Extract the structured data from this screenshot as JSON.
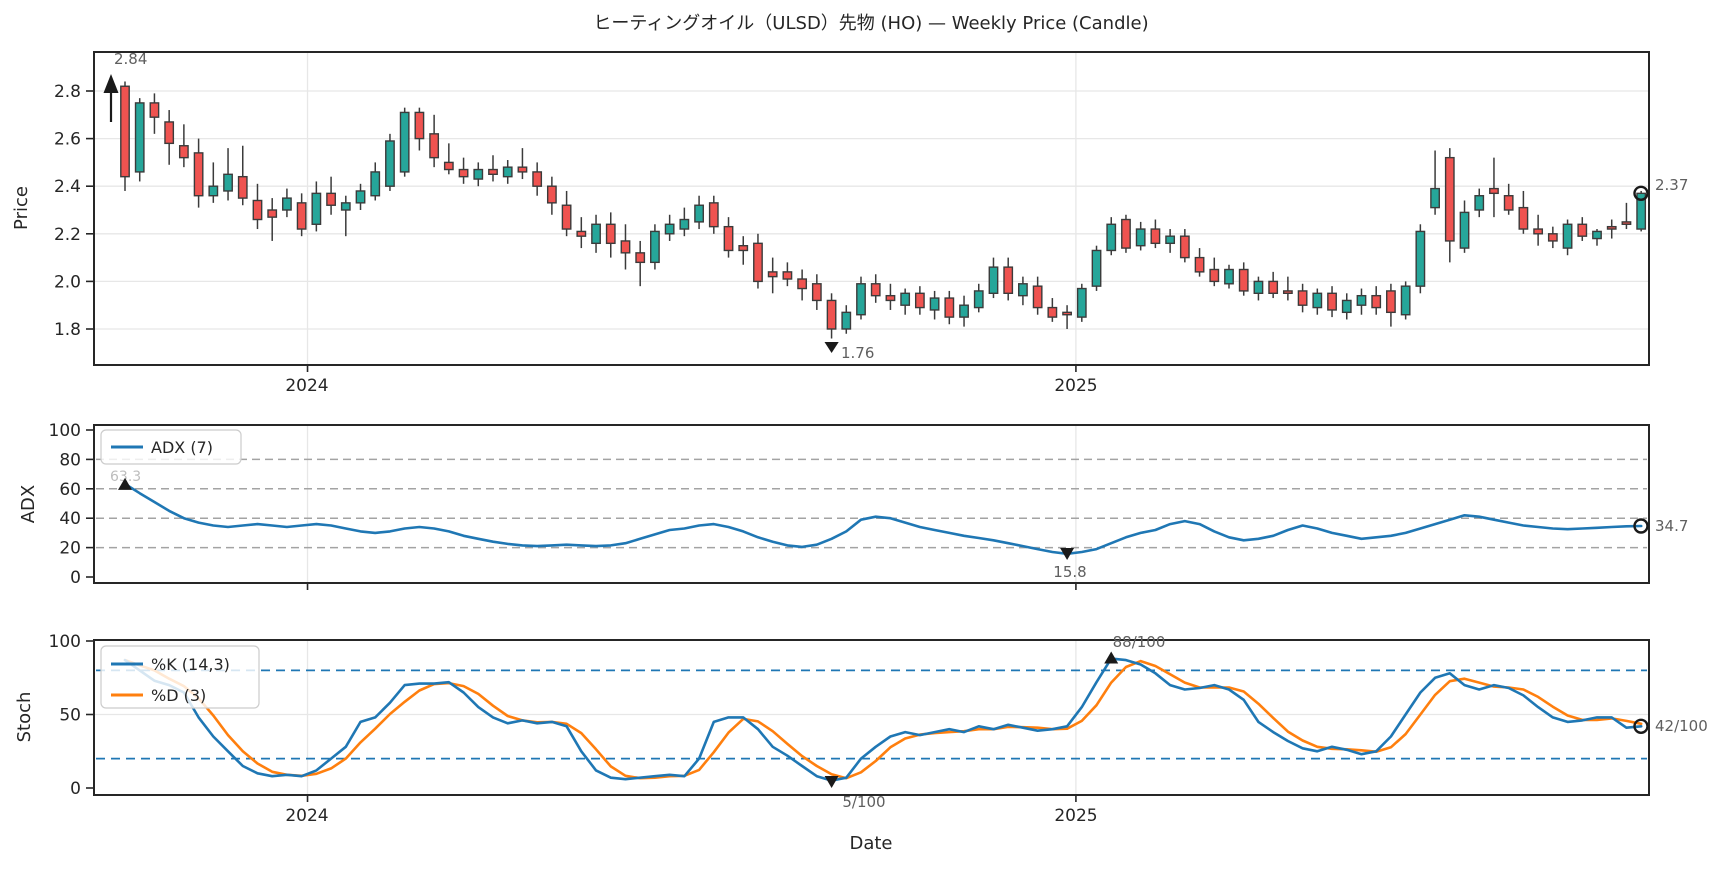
{
  "title": "ヒーティングオイル（ULSD）先物 (HO) — Weekly Price (Candle)",
  "colors": {
    "candle_up": "#26a69a",
    "candle_down": "#ef5350",
    "candle_edge": "#3b3b3b",
    "adx_line": "#1f77b4",
    "stoch_k_line": "#1f77b4",
    "stoch_d_line": "#ff7f0e",
    "grid": "#e7e7e7",
    "dashed_gray": "#a3a3a3",
    "dashed_blue": "#1f77b4",
    "marker": "#1a1a1a",
    "annotation_text": "#5f5f5f"
  },
  "xaxis": {
    "label": "Date",
    "ticks": [
      "2024",
      "2025"
    ]
  },
  "price_panel": {
    "ylabel": "Price",
    "yticks": [
      {
        "label": "1.8",
        "value": 1.8
      },
      {
        "label": "2.0",
        "value": 2.0
      },
      {
        "label": "2.2",
        "value": 2.2
      },
      {
        "label": "2.4",
        "value": 2.4
      },
      {
        "label": "2.6",
        "value": 2.6
      },
      {
        "label": "2.8",
        "value": 2.8
      }
    ],
    "annotations": {
      "start_high": "2.84",
      "min_low": "1.76",
      "last_close": "2.37"
    }
  },
  "adx_panel": {
    "ylabel": "ADX",
    "legend": "ADX (7)",
    "yticks": [
      {
        "label": "0",
        "value": 0
      },
      {
        "label": "20",
        "value": 20
      },
      {
        "label": "40",
        "value": 40
      },
      {
        "label": "60",
        "value": 60
      },
      {
        "label": "80",
        "value": 80
      },
      {
        "label": "100",
        "value": 100
      }
    ],
    "dashed_levels": [
      20,
      40,
      60,
      80
    ],
    "annotations": {
      "start": "63.3",
      "min": "15.8",
      "last": "34.7"
    }
  },
  "stoch_panel": {
    "ylabel": "Stoch",
    "legend_k": "%K (14,3)",
    "legend_d": "%D (3)",
    "yticks": [
      {
        "label": "0",
        "value": 0
      },
      {
        "label": "50",
        "value": 50
      },
      {
        "label": "100",
        "value": 100
      }
    ],
    "dashed_levels": [
      20,
      80
    ],
    "annotations": {
      "peak": "88/100",
      "min": "5/100",
      "last": "42/100"
    }
  },
  "chart_data": [
    {
      "type": "candlestick",
      "title": "ヒーティングオイル（ULSD）先物 (HO) — Weekly Price (Candle)",
      "xlabel": "Date",
      "ylabel": "Price",
      "timeframe": "weekly",
      "x_unit": "week_index",
      "ylim": [
        1.65,
        2.96
      ],
      "grid": true,
      "year_ticks": [
        {
          "label": "2024",
          "week": 12.4
        },
        {
          "label": "2025",
          "week": 64.6
        }
      ],
      "annotations": [
        {
          "week": 0,
          "text": "2.84",
          "kind": "high-arrow-up"
        },
        {
          "week": 48,
          "text": "1.76",
          "kind": "low-triangle-down"
        },
        {
          "week": 103,
          "text": "2.37",
          "kind": "last-close-circle"
        }
      ],
      "ohlc": [
        [
          2.82,
          2.84,
          2.38,
          2.44
        ],
        [
          2.46,
          2.77,
          2.42,
          2.75
        ],
        [
          2.75,
          2.79,
          2.62,
          2.69
        ],
        [
          2.67,
          2.72,
          2.49,
          2.58
        ],
        [
          2.57,
          2.66,
          2.48,
          2.52
        ],
        [
          2.54,
          2.6,
          2.31,
          2.36
        ],
        [
          2.36,
          2.5,
          2.33,
          2.4
        ],
        [
          2.38,
          2.56,
          2.34,
          2.45
        ],
        [
          2.44,
          2.57,
          2.32,
          2.35
        ],
        [
          2.34,
          2.41,
          2.22,
          2.26
        ],
        [
          2.3,
          2.35,
          2.17,
          2.27
        ],
        [
          2.3,
          2.39,
          2.27,
          2.35
        ],
        [
          2.33,
          2.37,
          2.19,
          2.22
        ],
        [
          2.24,
          2.42,
          2.21,
          2.37
        ],
        [
          2.37,
          2.44,
          2.28,
          2.32
        ],
        [
          2.3,
          2.36,
          2.19,
          2.33
        ],
        [
          2.33,
          2.41,
          2.3,
          2.38
        ],
        [
          2.36,
          2.5,
          2.34,
          2.46
        ],
        [
          2.4,
          2.62,
          2.38,
          2.59
        ],
        [
          2.46,
          2.73,
          2.44,
          2.71
        ],
        [
          2.71,
          2.73,
          2.55,
          2.6
        ],
        [
          2.62,
          2.7,
          2.48,
          2.52
        ],
        [
          2.5,
          2.58,
          2.45,
          2.47
        ],
        [
          2.47,
          2.52,
          2.41,
          2.44
        ],
        [
          2.43,
          2.5,
          2.4,
          2.47
        ],
        [
          2.47,
          2.53,
          2.42,
          2.45
        ],
        [
          2.44,
          2.51,
          2.41,
          2.48
        ],
        [
          2.48,
          2.56,
          2.43,
          2.46
        ],
        [
          2.46,
          2.5,
          2.36,
          2.4
        ],
        [
          2.4,
          2.44,
          2.28,
          2.33
        ],
        [
          2.32,
          2.38,
          2.19,
          2.22
        ],
        [
          2.21,
          2.27,
          2.14,
          2.19
        ],
        [
          2.16,
          2.28,
          2.12,
          2.24
        ],
        [
          2.24,
          2.29,
          2.1,
          2.16
        ],
        [
          2.17,
          2.24,
          2.05,
          2.12
        ],
        [
          2.12,
          2.17,
          1.98,
          2.08
        ],
        [
          2.08,
          2.24,
          2.05,
          2.21
        ],
        [
          2.2,
          2.28,
          2.17,
          2.24
        ],
        [
          2.22,
          2.31,
          2.19,
          2.26
        ],
        [
          2.25,
          2.36,
          2.22,
          2.32
        ],
        [
          2.33,
          2.36,
          2.2,
          2.23
        ],
        [
          2.23,
          2.27,
          2.1,
          2.13
        ],
        [
          2.15,
          2.19,
          2.07,
          2.13
        ],
        [
          2.16,
          2.2,
          1.97,
          2.0
        ],
        [
          2.04,
          2.1,
          1.95,
          2.02
        ],
        [
          2.04,
          2.08,
          1.98,
          2.01
        ],
        [
          2.01,
          2.05,
          1.92,
          1.97
        ],
        [
          1.99,
          2.03,
          1.88,
          1.92
        ],
        [
          1.92,
          1.95,
          1.76,
          1.8
        ],
        [
          1.8,
          1.9,
          1.78,
          1.87
        ],
        [
          1.86,
          2.02,
          1.84,
          1.99
        ],
        [
          1.99,
          2.03,
          1.91,
          1.94
        ],
        [
          1.94,
          1.99,
          1.88,
          1.92
        ],
        [
          1.9,
          1.97,
          1.86,
          1.95
        ],
        [
          1.95,
          1.98,
          1.86,
          1.89
        ],
        [
          1.88,
          1.96,
          1.84,
          1.93
        ],
        [
          1.93,
          1.96,
          1.82,
          1.85
        ],
        [
          1.85,
          1.94,
          1.81,
          1.9
        ],
        [
          1.89,
          1.99,
          1.87,
          1.96
        ],
        [
          1.95,
          2.1,
          1.93,
          2.06
        ],
        [
          2.06,
          2.1,
          1.92,
          1.95
        ],
        [
          1.94,
          2.02,
          1.9,
          1.99
        ],
        [
          1.98,
          2.02,
          1.86,
          1.89
        ],
        [
          1.89,
          1.93,
          1.83,
          1.85
        ],
        [
          1.87,
          1.9,
          1.8,
          1.86
        ],
        [
          1.85,
          1.99,
          1.83,
          1.97
        ],
        [
          1.98,
          2.15,
          1.96,
          2.13
        ],
        [
          2.13,
          2.27,
          2.11,
          2.24
        ],
        [
          2.26,
          2.28,
          2.12,
          2.14
        ],
        [
          2.15,
          2.25,
          2.13,
          2.22
        ],
        [
          2.22,
          2.26,
          2.14,
          2.16
        ],
        [
          2.16,
          2.22,
          2.12,
          2.19
        ],
        [
          2.19,
          2.22,
          2.08,
          2.1
        ],
        [
          2.1,
          2.14,
          2.02,
          2.04
        ],
        [
          2.05,
          2.1,
          1.98,
          2.0
        ],
        [
          1.99,
          2.07,
          1.97,
          2.05
        ],
        [
          2.05,
          2.08,
          1.94,
          1.96
        ],
        [
          1.95,
          2.02,
          1.92,
          2.0
        ],
        [
          2.0,
          2.04,
          1.93,
          1.95
        ],
        [
          1.96,
          2.02,
          1.92,
          1.95
        ],
        [
          1.96,
          1.99,
          1.87,
          1.9
        ],
        [
          1.89,
          1.97,
          1.86,
          1.95
        ],
        [
          1.95,
          1.98,
          1.85,
          1.88
        ],
        [
          1.87,
          1.95,
          1.84,
          1.92
        ],
        [
          1.9,
          1.97,
          1.86,
          1.94
        ],
        [
          1.94,
          1.98,
          1.86,
          1.89
        ],
        [
          1.96,
          1.99,
          1.81,
          1.87
        ],
        [
          1.86,
          2.0,
          1.84,
          1.98
        ],
        [
          1.98,
          2.24,
          1.95,
          2.21
        ],
        [
          2.31,
          2.55,
          2.28,
          2.39
        ],
        [
          2.52,
          2.56,
          2.08,
          2.17
        ],
        [
          2.14,
          2.34,
          2.12,
          2.29
        ],
        [
          2.3,
          2.39,
          2.27,
          2.36
        ],
        [
          2.39,
          2.52,
          2.27,
          2.37
        ],
        [
          2.36,
          2.41,
          2.28,
          2.3
        ],
        [
          2.31,
          2.38,
          2.2,
          2.22
        ],
        [
          2.22,
          2.28,
          2.15,
          2.2
        ],
        [
          2.2,
          2.23,
          2.14,
          2.17
        ],
        [
          2.14,
          2.26,
          2.11,
          2.24
        ],
        [
          2.24,
          2.27,
          2.17,
          2.19
        ],
        [
          2.18,
          2.22,
          2.15,
          2.21
        ],
        [
          2.23,
          2.26,
          2.18,
          2.22
        ],
        [
          2.25,
          2.33,
          2.22,
          2.24
        ],
        [
          2.22,
          2.38,
          2.21,
          2.37
        ]
      ]
    },
    {
      "type": "line",
      "name": "ADX (7)",
      "ylabel": "ADX",
      "ylim": [
        0,
        100
      ],
      "grid_dashed_levels": [
        20,
        40,
        60,
        80
      ],
      "legend_position": "upper-left",
      "annotations": [
        {
          "week": 0,
          "value": 63.3,
          "text": "63.3",
          "kind": "start-triangle-up"
        },
        {
          "week": 64,
          "value": 15.8,
          "text": "15.8",
          "kind": "min-triangle-down"
        },
        {
          "week": 103,
          "value": 34.7,
          "text": "34.7",
          "kind": "end-circle"
        }
      ],
      "values": [
        63.3,
        57,
        51,
        45,
        40,
        37,
        35,
        34,
        35,
        36,
        35,
        34,
        35,
        36,
        35,
        33,
        31,
        30,
        31,
        33,
        34,
        33,
        31,
        28,
        26,
        24,
        22.5,
        21.5,
        21,
        21.5,
        22,
        21.5,
        21,
        21.5,
        23,
        26,
        29,
        32,
        33,
        35,
        36,
        34,
        31,
        27,
        24,
        21.5,
        20.5,
        22,
        26,
        31,
        39,
        41,
        40,
        37,
        34,
        32,
        30,
        28,
        26.5,
        25,
        23,
        21,
        19,
        17,
        15.8,
        17,
        19,
        23,
        27,
        30,
        32,
        36,
        38,
        36,
        31,
        27,
        25,
        26,
        28,
        32,
        35,
        33,
        30,
        28,
        26,
        27,
        28,
        30,
        33,
        36,
        39,
        42,
        41,
        39,
        37,
        35,
        34,
        33,
        32.5,
        33,
        33.5,
        34,
        34.5,
        34.7
      ]
    },
    {
      "type": "line",
      "ylabel": "Stoch",
      "ylim": [
        0,
        100
      ],
      "hlines_dashed_blue": [
        20,
        80
      ],
      "legend_position": "upper-left",
      "annotations": [
        {
          "week": 67,
          "value": 88,
          "text": "88/100",
          "kind": "peak-triangle-up"
        },
        {
          "week": 48,
          "value": 5,
          "text": "5/100",
          "kind": "min-triangle-down"
        },
        {
          "week": 103,
          "value": 42,
          "text": "42/100",
          "kind": "end-circle"
        }
      ],
      "series": [
        {
          "name": "%K (14,3)",
          "values": [
            87,
            80,
            73,
            70,
            65,
            48,
            35,
            25,
            15,
            10,
            8,
            9,
            8,
            12,
            20,
            28,
            45,
            48,
            58,
            70,
            71,
            71,
            72,
            65,
            55,
            48,
            44,
            46,
            44,
            45,
            42,
            25,
            12,
            7,
            6,
            7,
            8,
            9,
            8,
            20,
            45,
            48,
            48,
            40,
            28,
            22,
            15,
            8,
            5,
            7,
            20,
            28,
            35,
            38,
            36,
            38,
            40,
            38,
            42,
            40,
            43,
            41,
            39,
            40,
            42,
            55,
            72,
            88,
            87,
            84,
            78,
            70,
            67,
            68,
            70,
            67,
            60,
            45,
            38,
            32,
            27,
            25,
            28,
            26,
            23,
            25,
            35,
            50,
            65,
            75,
            78,
            70,
            67,
            70,
            68,
            63,
            55,
            48,
            45,
            46,
            48,
            48,
            41,
            42
          ]
        },
        {
          "name": "%D (3)",
          "derived_from": "3-week simple moving average of %K"
        }
      ]
    }
  ]
}
